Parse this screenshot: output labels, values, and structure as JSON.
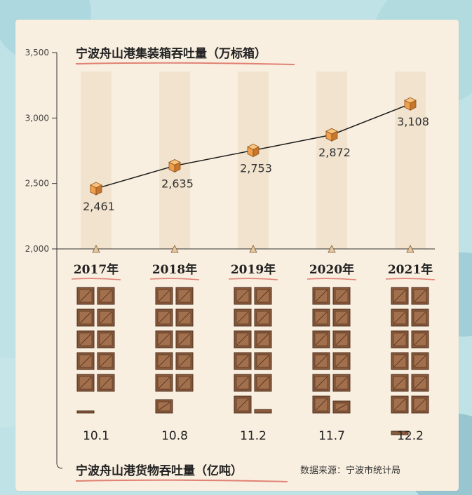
{
  "colors": {
    "background": "#b8dde3",
    "paper": "#f9efe0",
    "column_band": "#efe1cc",
    "line": "#1a1a1a",
    "marker": "#f0a04b",
    "marker_dark": "#c9772c",
    "container": "#8a5a3c",
    "container_face": "#a3704d",
    "accent_underline": "#d9665a"
  },
  "chart_data": [
    {
      "type": "line",
      "title": "宁波舟山港集装箱吞吐量（万标箱）",
      "categories": [
        "2017年",
        "2018年",
        "2019年",
        "2020年",
        "2021年"
      ],
      "values": [
        2461,
        2635,
        2753,
        2872,
        3108
      ],
      "value_labels": [
        "2,461",
        "2,635",
        "2,753",
        "2,872",
        "3,108"
      ],
      "ylim": [
        2000,
        3500
      ],
      "yticks": [
        2000,
        2500,
        3000,
        3500
      ],
      "ytick_labels": [
        "2,000",
        "2,500",
        "3,000",
        "3,500"
      ],
      "grid": false,
      "marker": "cube-icon"
    },
    {
      "type": "bar",
      "title": "宁波舟山港货物吞吐量（亿吨）",
      "categories": [
        "2017年",
        "2018年",
        "2019年",
        "2020年",
        "2021年"
      ],
      "values": [
        10.1,
        10.8,
        11.2,
        11.7,
        12.2
      ],
      "value_labels": [
        "10.1",
        "10.8",
        "11.2",
        "11.7",
        "12.2"
      ],
      "unit_icon": "container-crate-icon"
    }
  ],
  "source": "数据来源：宁波市统计局"
}
